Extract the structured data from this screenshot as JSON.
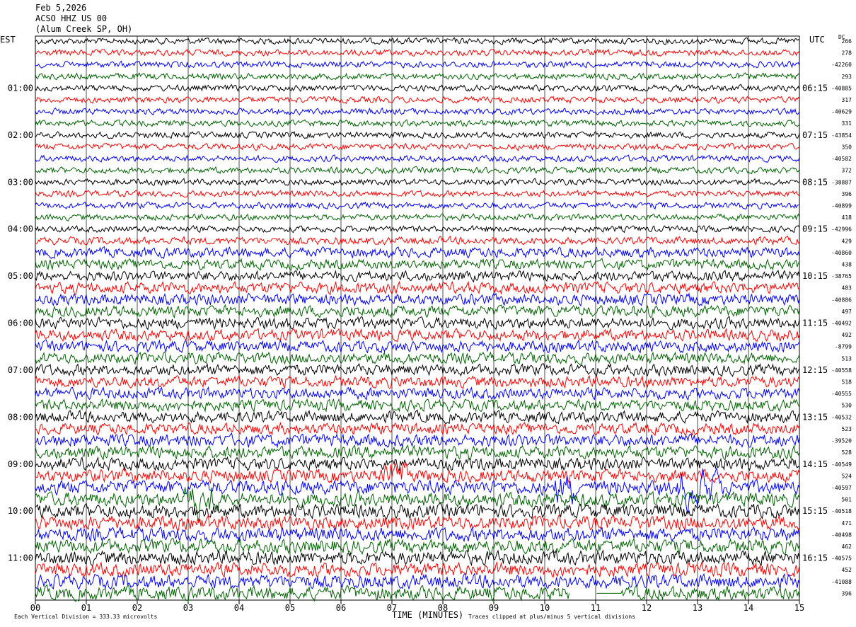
{
  "header": {
    "date": "Feb 5,2026",
    "station": "ACSO HHZ US 00",
    "location": "(Alum Creek SP, OH)"
  },
  "left_axis_label": "EST",
  "right_axis_label": "UTC",
  "right_corner_label": "DC",
  "footer": {
    "scale_note": "Each Vertical Division =  333.33 microvolts",
    "clip_note": "Traces clipped at plus/minus 5 vertical divisions",
    "xlabel": "TIME (MINUTES)"
  },
  "colors": {
    "trace_cycle": [
      "#000000",
      "#ff0000",
      "#0000ff",
      "#006400"
    ],
    "grid": "#000000",
    "background": "#ffffff"
  },
  "chart_data": {
    "type": "line",
    "description_free": true,
    "xlabel": "TIME (MINUTES)",
    "xlim": [
      0,
      15
    ],
    "x_ticks": [
      "00",
      "01",
      "02",
      "03",
      "04",
      "05",
      "06",
      "07",
      "08",
      "09",
      "10",
      "11",
      "12",
      "13",
      "14",
      "15"
    ],
    "trace_count": 48,
    "traces_per_hour": 4,
    "vertical_grid": "every minute",
    "left_hour_labels": [
      "01:00",
      "02:00",
      "03:00",
      "04:00",
      "05:00",
      "06:00",
      "07:00",
      "08:00",
      "09:00",
      "10:00",
      "11:00"
    ],
    "right_hour_labels": [
      "06:15",
      "07:15",
      "08:15",
      "09:15",
      "10:15",
      "11:15",
      "12:15",
      "13:15",
      "14:15",
      "15:15",
      "16:15"
    ],
    "dc_offsets": [
      "266",
      "278",
      "-42260",
      "293",
      "-40885",
      "317",
      "-40629",
      "331",
      "-43854",
      "350",
      "-40582",
      "372",
      "-38887",
      "396",
      "-40899",
      "418",
      "-42996",
      "429",
      "-40860",
      "438",
      "-38765",
      "483",
      "-40886",
      "497",
      "-40492",
      "492",
      "-8799",
      "513",
      "-40558",
      "518",
      "-40555",
      "530",
      "-40532",
      "523",
      "-39520",
      "528",
      "-40549",
      "524",
      "-40597",
      "501",
      "-40518",
      "471",
      "-40498",
      "462",
      "-40575",
      "452",
      "-41088",
      "396"
    ],
    "trace_amplitude_divisions": [
      0.25,
      0.25,
      0.25,
      0.25,
      0.25,
      0.25,
      0.25,
      0.25,
      0.25,
      0.25,
      0.25,
      0.25,
      0.25,
      0.25,
      0.25,
      0.25,
      0.25,
      0.3,
      0.4,
      0.4,
      0.4,
      0.45,
      0.45,
      0.45,
      0.45,
      0.45,
      0.45,
      0.45,
      0.45,
      0.45,
      0.45,
      0.45,
      0.45,
      0.45,
      0.5,
      0.5,
      0.5,
      0.5,
      0.55,
      0.55,
      0.55,
      0.55,
      0.55,
      0.55,
      0.55,
      0.55,
      0.55,
      0.55
    ],
    "gap_last_trace_minutes": [
      [
        10.5,
        11.5
      ]
    ]
  }
}
